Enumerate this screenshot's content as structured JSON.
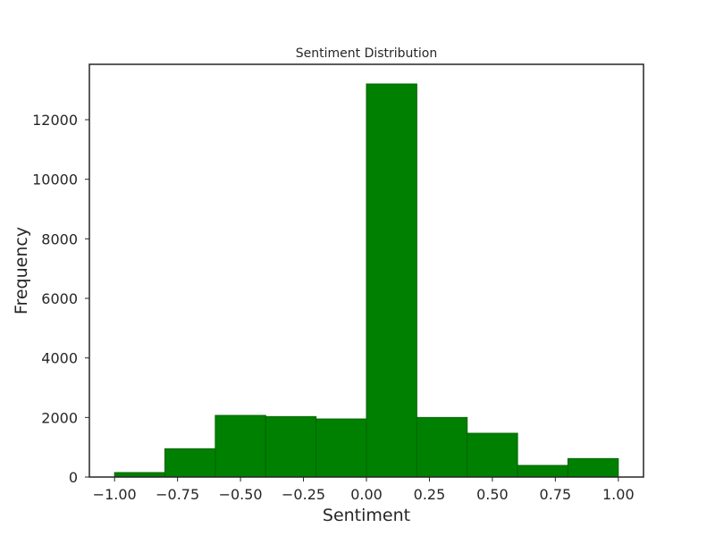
{
  "chart_data": {
    "type": "bar",
    "title": "Sentiment Distribution",
    "xlabel": "Sentiment",
    "ylabel": "Frequency",
    "bins": [
      {
        "start": -1.0,
        "end": -0.8,
        "value": 150
      },
      {
        "start": -0.8,
        "end": -0.6,
        "value": 950
      },
      {
        "start": -0.6,
        "end": -0.4,
        "value": 2070
      },
      {
        "start": -0.4,
        "end": -0.2,
        "value": 2030
      },
      {
        "start": -0.2,
        "end": 0.0,
        "value": 1950
      },
      {
        "start": 0.0,
        "end": 0.2,
        "value": 13200
      },
      {
        "start": 0.2,
        "end": 0.4,
        "value": 2000
      },
      {
        "start": 0.4,
        "end": 0.6,
        "value": 1470
      },
      {
        "start": 0.6,
        "end": 0.8,
        "value": 390
      },
      {
        "start": 0.8,
        "end": 1.0,
        "value": 620
      }
    ],
    "xlim": [
      -1.1,
      1.1
    ],
    "ylim": [
      0,
      13860
    ],
    "x_ticks": [
      -1.0,
      -0.75,
      -0.5,
      -0.25,
      0.0,
      0.25,
      0.5,
      0.75,
      1.0
    ],
    "x_tick_labels": [
      "−1.00",
      "−0.75",
      "−0.50",
      "−0.25",
      "0.00",
      "0.25",
      "0.50",
      "0.75",
      "1.00"
    ],
    "y_ticks": [
      0,
      2000,
      4000,
      6000,
      8000,
      10000,
      12000
    ],
    "y_tick_labels": [
      "0",
      "2000",
      "4000",
      "6000",
      "8000",
      "10000",
      "12000"
    ],
    "bar_color": "#008000",
    "bar_edge_color": "#006400",
    "grid": false,
    "legend": "none"
  }
}
